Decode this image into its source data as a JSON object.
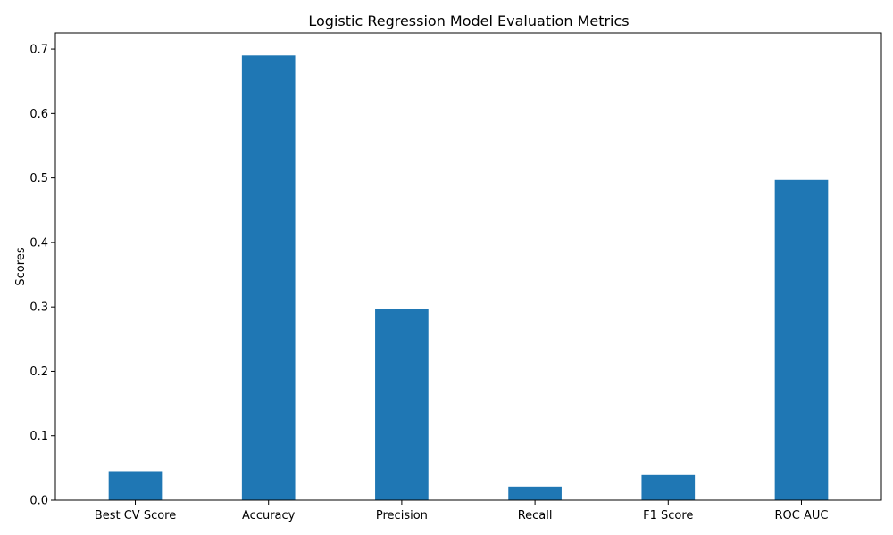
{
  "chart_data": {
    "type": "bar",
    "title": "Logistic Regression Model Evaluation Metrics",
    "xlabel": "",
    "ylabel": "Scores",
    "categories": [
      "Best CV Score",
      "Accuracy",
      "Precision",
      "Recall",
      "F1 Score",
      "ROC AUC"
    ],
    "values": [
      0.045,
      0.69,
      0.297,
      0.021,
      0.039,
      0.497
    ],
    "ylim": [
      0,
      0.725
    ],
    "yticks": [
      0.0,
      0.1,
      0.2,
      0.3,
      0.4,
      0.5,
      0.6,
      0.7
    ],
    "ytick_labels": [
      "0.0",
      "0.1",
      "0.2",
      "0.3",
      "0.4",
      "0.5",
      "0.6",
      "0.7"
    ],
    "bar_color": "#1f77b4",
    "grid": false,
    "legend": false
  }
}
